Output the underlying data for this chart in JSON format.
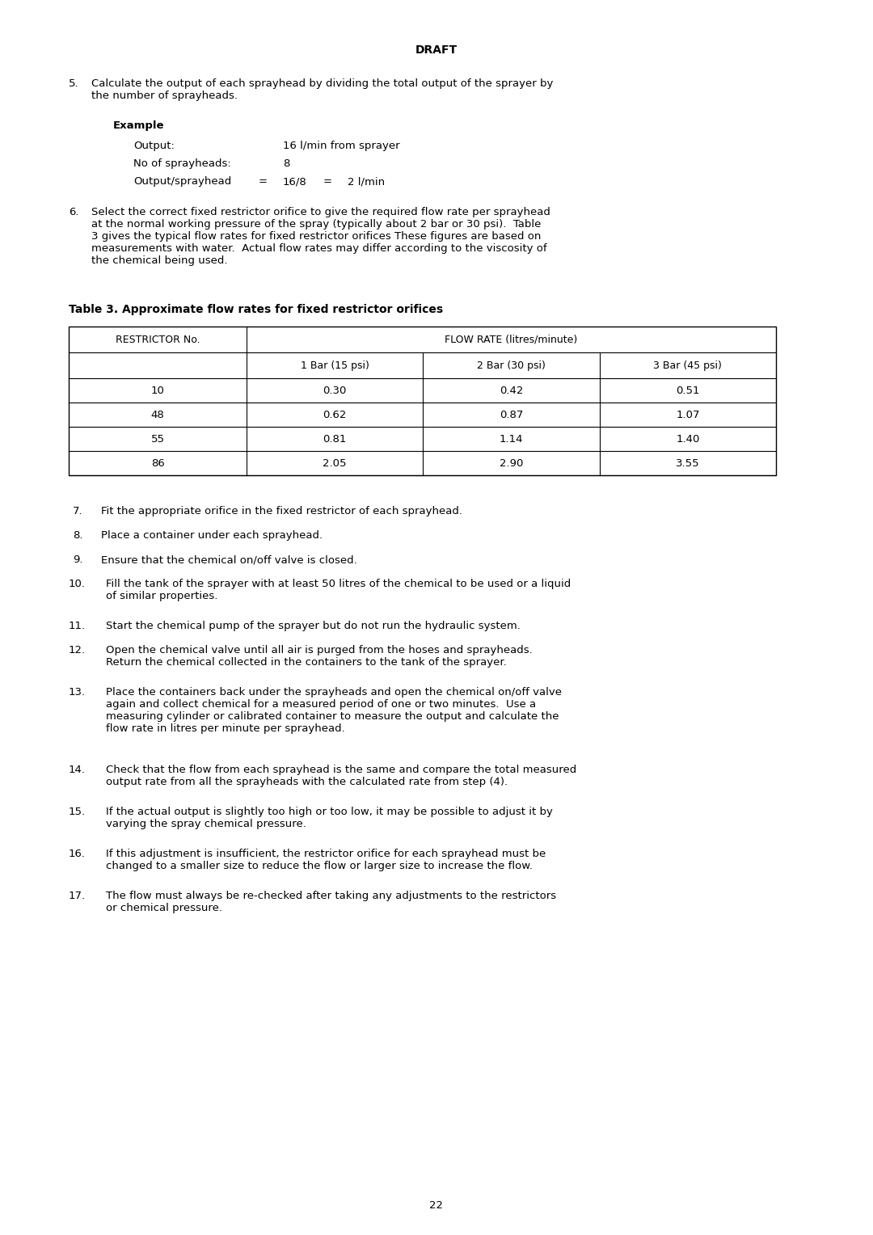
{
  "background_color": "#ffffff",
  "page_width": 10.8,
  "page_height": 15.28,
  "header": "DRAFT",
  "footer_page": "22",
  "font_family": "DejaVu Sans",
  "sections": {
    "item5": {
      "number": "5.",
      "text": "Calculate the output of each sprayhead by dividing the total output of the sprayer by\nthe number of sprayheads.",
      "example": {
        "label": "Example",
        "rows": [
          {
            "label": "Output:",
            "value": "16 l/min from sprayer"
          },
          {
            "label": "No of sprayheads:",
            "value": "8"
          },
          {
            "label": "Output/sprayhead",
            "eq1": "=",
            "val1": "16/8",
            "eq2": "=",
            "val2": "2 l/min"
          }
        ]
      }
    },
    "item6": {
      "number": "6.",
      "text": "Select the correct fixed restrictor orifice to give the required flow rate per sprayhead\nat the normal working pressure of the spray (typically about 2 bar or 30 psi).  Table\n3 gives the typical flow rates for fixed restrictor orifices These figures are based on\nmeasurements with water.  Actual flow rates may differ according to the viscosity of\nthe chemical being used."
    },
    "table_caption": "Table 3. Approximate flow rates for fixed restrictor orifices",
    "table": {
      "col_headers_row1": [
        "RESTRICTOR No.",
        "FLOW RATE (litres/minute)"
      ],
      "col_headers_row2": [
        "",
        "1 Bar (15 psi)",
        "2 Bar (30 psi)",
        "3 Bar (45 psi)"
      ],
      "data": [
        [
          "10",
          "0.30",
          "0.42",
          "0.51"
        ],
        [
          "48",
          "0.62",
          "0.87",
          "1.07"
        ],
        [
          "55",
          "0.81",
          "1.14",
          "1.40"
        ],
        [
          "86",
          "2.05",
          "2.90",
          "3.55"
        ]
      ]
    },
    "items7to17": [
      {
        "number": "7.",
        "text": "Fit the appropriate orifice in the fixed restrictor of each sprayhead."
      },
      {
        "number": "8.",
        "text": "Place a container under each sprayhead."
      },
      {
        "number": "9.",
        "text": "Ensure that the chemical on/off valve is closed."
      },
      {
        "number": "10.",
        "text": "Fill the tank of the sprayer with at least 50 litres of the chemical to be used or a liquid\nof similar properties."
      },
      {
        "number": "11.",
        "text": "Start the chemical pump of the sprayer but do not run the hydraulic system."
      },
      {
        "number": "12.",
        "text": "Open the chemical valve until all air is purged from the hoses and sprayheads.\nReturn the chemical collected in the containers to the tank of the sprayer."
      },
      {
        "number": "13.",
        "text": "Place the containers back under the sprayheads and open the chemical on/off valve\nagain and collect chemical for a measured period of one or two minutes.  Use a\nmeasuring cylinder or calibrated container to measure the output and calculate the\nflow rate in litres per minute per sprayhead."
      },
      {
        "number": "14.",
        "text": "Check that the flow from each sprayhead is the same and compare the total measured\noutput rate from all the sprayheads with the calculated rate from step (4)."
      },
      {
        "number": "15.",
        "text": "If the actual output is slightly too high or too low, it may be possible to adjust it by\nvarying the spray chemical pressure."
      },
      {
        "number": "16.",
        "text": "If this adjustment is insufficient, the restrictor orifice for each sprayhead must be\nchanged to a smaller size to reduce the flow or larger size to increase the flow."
      },
      {
        "number": "17.",
        "text": "The flow must always be re-checked after taking any adjustments to the restrictors\nor chemical pressure."
      }
    ]
  }
}
